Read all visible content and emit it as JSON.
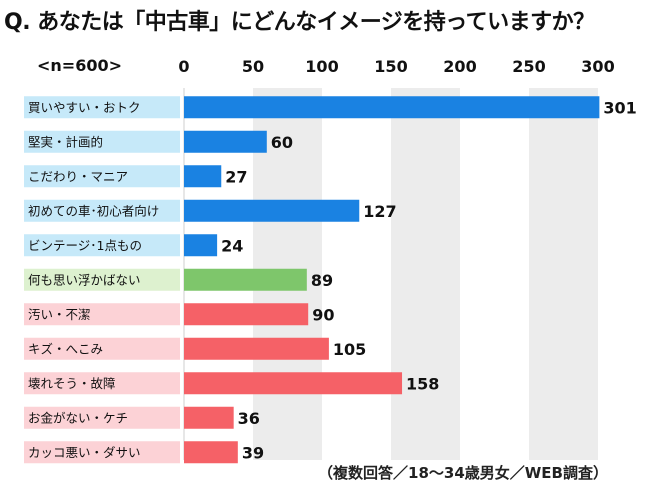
{
  "title": "Q. あなたは「中古車」にどんなイメージを持っていますか？",
  "n_label": "<n=600>",
  "source_note": "（複数回答／18～34歳男女／WEB調査）",
  "colors": {
    "blue": "#1a82e2",
    "green": "#7ec66b",
    "red": "#f56167",
    "label_blue": "#c6e9f9",
    "label_green": "#ddf1cf",
    "label_red": "#fcd2d6",
    "band": "#ececec"
  },
  "chart_data": {
    "type": "bar",
    "orientation": "horizontal",
    "xlim": [
      0,
      300
    ],
    "xticks": [
      0,
      50,
      100,
      150,
      200,
      250,
      300
    ],
    "grid": "alternating vertical bands",
    "categories": [
      "買いやすい・おトク",
      "堅実・計画的",
      "こだわり・マニア",
      "初めての車･初心者向け",
      "ビンテージ･1点もの",
      "何も思い浮かばない",
      "汚い・不潔",
      "キズ・へこみ",
      "壊れそう・故障",
      "お金がない・ケチ",
      "カッコ悪い・ダサい"
    ],
    "values": [
      301,
      60,
      27,
      127,
      24,
      89,
      90,
      105,
      158,
      36,
      39
    ],
    "groups": [
      "blue",
      "blue",
      "blue",
      "blue",
      "blue",
      "green",
      "red",
      "red",
      "red",
      "red",
      "red"
    ]
  }
}
